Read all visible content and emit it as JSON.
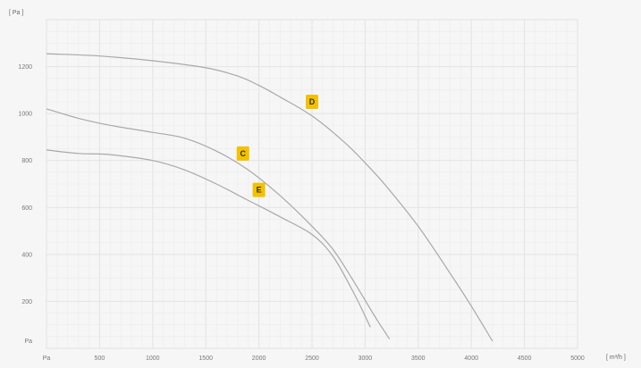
{
  "chart_data": {
    "type": "line",
    "title": "",
    "xlabel": "[ m³/h ]",
    "ylabel": "[ Pa ]",
    "xlim": [
      0,
      5000
    ],
    "ylim": [
      0,
      1400
    ],
    "x_ticks": [
      0,
      500,
      1000,
      1500,
      2000,
      2500,
      3000,
      3500,
      4000,
      4500,
      5000
    ],
    "x_tick_labels": [
      "Pa",
      "500",
      "1000",
      "1500",
      "2000",
      "2500",
      "3000",
      "3500",
      "4000",
      "4500",
      "5000"
    ],
    "y_ticks": [
      200,
      400,
      600,
      800,
      1000,
      1200
    ],
    "y_tick_labels": [
      "200",
      "400",
      "600",
      "800",
      "1000",
      "1200"
    ],
    "y_zero_label": "Pa",
    "grid": true,
    "series": [
      {
        "name": "D",
        "color": "#a9a9a9",
        "label_at": [
          2500,
          1050
        ],
        "points": [
          [
            0,
            1255
          ],
          [
            500,
            1245
          ],
          [
            1000,
            1225
          ],
          [
            1500,
            1195
          ],
          [
            1800,
            1160
          ],
          [
            2000,
            1120
          ],
          [
            2200,
            1070
          ],
          [
            2500,
            990
          ],
          [
            2800,
            880
          ],
          [
            3000,
            790
          ],
          [
            3200,
            690
          ],
          [
            3500,
            520
          ],
          [
            3800,
            320
          ],
          [
            4000,
            180
          ],
          [
            4200,
            30
          ]
        ]
      },
      {
        "name": "C",
        "color": "#a9a9a9",
        "label_at": [
          1850,
          830
        ],
        "points": [
          [
            0,
            1020
          ],
          [
            300,
            980
          ],
          [
            600,
            950
          ],
          [
            1000,
            920
          ],
          [
            1300,
            895
          ],
          [
            1600,
            840
          ],
          [
            1900,
            760
          ],
          [
            2200,
            650
          ],
          [
            2500,
            520
          ],
          [
            2700,
            420
          ],
          [
            2900,
            280
          ],
          [
            3100,
            130
          ],
          [
            3230,
            40
          ]
        ]
      },
      {
        "name": "E",
        "color": "#a9a9a9",
        "label_at": [
          2000,
          675
        ],
        "points": [
          [
            0,
            845
          ],
          [
            300,
            830
          ],
          [
            600,
            825
          ],
          [
            1000,
            800
          ],
          [
            1300,
            760
          ],
          [
            1600,
            700
          ],
          [
            1900,
            630
          ],
          [
            2200,
            560
          ],
          [
            2500,
            485
          ],
          [
            2700,
            390
          ],
          [
            2900,
            230
          ],
          [
            3050,
            90
          ]
        ]
      }
    ]
  }
}
